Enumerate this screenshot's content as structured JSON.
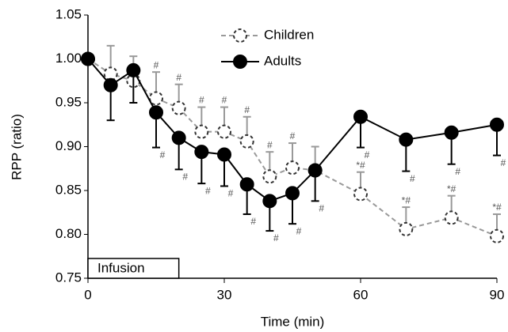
{
  "chart_data": {
    "type": "line",
    "x_label": "Time (min)",
    "y_label": "RPP (ratio)",
    "x": [
      0,
      5,
      10,
      15,
      20,
      25,
      30,
      35,
      40,
      45,
      50,
      60,
      70,
      80,
      90
    ],
    "series": [
      {
        "name": "Children",
        "color": "#999999",
        "dashed": true,
        "filled": false,
        "error_direction": "up",
        "values": [
          1.0,
          0.983,
          0.975,
          0.955,
          0.944,
          0.917,
          0.917,
          0.906,
          0.866,
          0.876,
          0.873,
          0.846,
          0.806,
          0.819,
          0.798
        ],
        "errors": [
          0,
          0.032,
          0.028,
          0.03,
          0.027,
          0.028,
          0.028,
          0.028,
          0.028,
          0.028,
          0.027,
          0.025,
          0.025,
          0.025,
          0.025
        ],
        "annotations": [
          null,
          null,
          null,
          "#",
          "#",
          "#",
          "#",
          "#",
          "#",
          "#",
          null,
          "*#",
          "*#",
          "*#",
          "*#"
        ]
      },
      {
        "name": "Adults",
        "color": "#000000",
        "dashed": false,
        "filled": true,
        "error_direction": "down",
        "values": [
          1.0,
          0.97,
          0.987,
          0.939,
          0.91,
          0.894,
          0.891,
          0.857,
          0.838,
          0.847,
          0.873,
          0.934,
          0.908,
          0.916,
          0.925
        ],
        "errors": [
          0,
          0.04,
          0.037,
          0.04,
          0.036,
          0.036,
          0.036,
          0.034,
          0.034,
          0.035,
          0.035,
          0.035,
          0.036,
          0.036,
          0.035
        ],
        "annotations": [
          null,
          null,
          null,
          "#",
          "#",
          "#",
          "#",
          "#",
          "#",
          "#",
          "#",
          "#",
          "#",
          "#",
          "#"
        ]
      }
    ],
    "shaded_period": {
      "label": "Infusion",
      "start": 0,
      "end": 20
    },
    "xlim": [
      0,
      90
    ],
    "xticks": [
      0,
      30,
      60,
      90
    ],
    "ylim": [
      0.75,
      1.05
    ],
    "yticks": [
      0.75,
      {
        "value": 0.8,
        "label": "0.80"
      },
      0.85,
      {
        "value": 0.9,
        "label": "0.90"
      },
      0.95,
      {
        "value": 1.0,
        "label": "1.00"
      },
      1.05
    ],
    "legend": "upper center"
  }
}
